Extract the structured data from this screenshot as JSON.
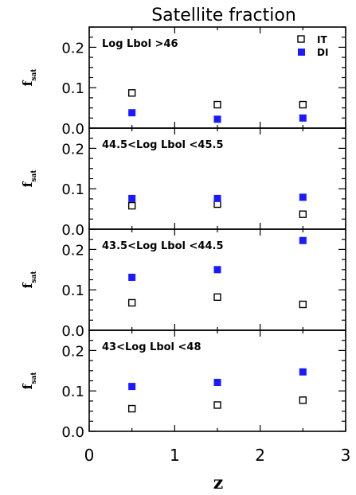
{
  "chart_data": {
    "type": "scatter",
    "title": "Satellite fraction",
    "xlabel": "z",
    "ylabel": "f",
    "ylabel_subscript": "sat",
    "xlim": [
      0,
      3
    ],
    "ylim": [
      0,
      0.25
    ],
    "x_ticks": [
      "0",
      "1",
      "2",
      "3"
    ],
    "y_ticks": [
      "0.0",
      "0.1",
      "0.2"
    ],
    "legend": {
      "position": "top-right",
      "entries": [
        {
          "name": "IT",
          "marker": "open-square",
          "color": "#000000"
        },
        {
          "name": "DI",
          "marker": "filled-square",
          "color": "#1a1aff"
        }
      ]
    },
    "panels": [
      {
        "label": "Log Lbol >46",
        "series": [
          {
            "name": "IT",
            "x": [
              0.5,
              1.5,
              2.5
            ],
            "y": [
              0.087,
              0.058,
              0.058
            ]
          },
          {
            "name": "DI",
            "x": [
              0.5,
              1.5,
              2.5
            ],
            "y": [
              0.038,
              0.022,
              0.025
            ]
          }
        ]
      },
      {
        "label": "44.5<Log Lbol <45.5",
        "series": [
          {
            "name": "IT",
            "x": [
              0.5,
              1.5,
              2.5
            ],
            "y": [
              0.058,
              0.062,
              0.037
            ]
          },
          {
            "name": "DI",
            "x": [
              0.5,
              1.5,
              2.5
            ],
            "y": [
              0.076,
              0.076,
              0.079
            ]
          }
        ]
      },
      {
        "label": "43.5<Log Lbol <44.5",
        "series": [
          {
            "name": "IT",
            "x": [
              0.5,
              1.5,
              2.5
            ],
            "y": [
              0.068,
              0.082,
              0.064
            ]
          },
          {
            "name": "DI",
            "x": [
              0.5,
              1.5,
              2.5
            ],
            "y": [
              0.131,
              0.15,
              0.222
            ]
          }
        ]
      },
      {
        "label": "43<Log Lbol <48",
        "series": [
          {
            "name": "IT",
            "x": [
              0.5,
              1.5,
              2.5
            ],
            "y": [
              0.056,
              0.065,
              0.077
            ]
          },
          {
            "name": "DI",
            "x": [
              0.5,
              1.5,
              2.5
            ],
            "y": [
              0.111,
              0.121,
              0.147
            ]
          }
        ]
      }
    ]
  }
}
